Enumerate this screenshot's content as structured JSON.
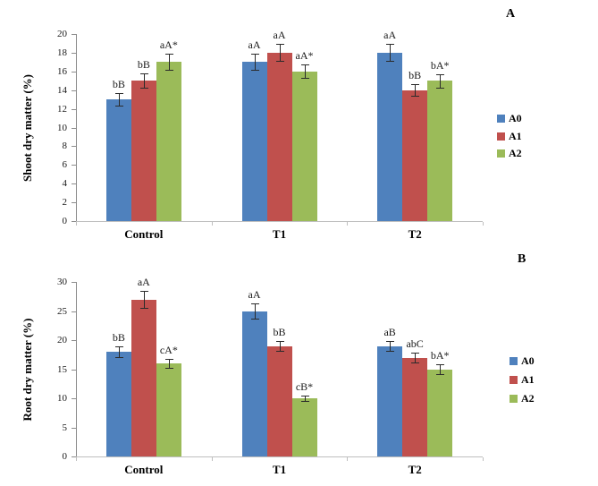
{
  "figure": {
    "background": "#ffffff",
    "error_bar_color": "#2b2b2b"
  },
  "chart_data": [
    {
      "type": "bar",
      "panel_label": "A",
      "title": "",
      "xlabel": "",
      "ylabel": "Shoot dry matter (%)",
      "categories": [
        "Control",
        "T1",
        "T2"
      ],
      "series": [
        {
          "name": "A0",
          "color": "#4F81BD",
          "values": [
            13,
            17,
            18
          ],
          "errors": [
            0.7,
            0.85,
            0.9
          ],
          "labels": [
            "bB",
            "aA",
            "aA"
          ]
        },
        {
          "name": "A1",
          "color": "#C0504D",
          "values": [
            15,
            18,
            14
          ],
          "errors": [
            0.75,
            0.9,
            0.6
          ],
          "labels": [
            "bB",
            "aA",
            "bB"
          ]
        },
        {
          "name": "A2",
          "color": "#9BBB59",
          "values": [
            17,
            16,
            15
          ],
          "errors": [
            0.85,
            0.7,
            0.7
          ],
          "labels": [
            "aA*",
            "aA*",
            "bA*"
          ]
        }
      ],
      "ylim": [
        0,
        20
      ],
      "ytick_step": 2,
      "ytick_labels": [
        "0",
        "2",
        "4",
        "6",
        "8",
        "10",
        "12",
        "14",
        "16",
        "18",
        "20"
      ],
      "legend": [
        "A0",
        "A1",
        "A2"
      ],
      "legend_position": "right",
      "grid": false
    },
    {
      "type": "bar",
      "panel_label": "B",
      "title": "",
      "xlabel": "",
      "ylabel": "Root dry matter (%)",
      "categories": [
        "Control",
        "T1",
        "T2"
      ],
      "series": [
        {
          "name": "A0",
          "color": "#4F81BD",
          "values": [
            18,
            25,
            19
          ],
          "errors": [
            0.9,
            1.3,
            0.8
          ],
          "labels": [
            "bB",
            "aA",
            "aB"
          ]
        },
        {
          "name": "A1",
          "color": "#C0504D",
          "values": [
            27,
            19,
            17
          ],
          "errors": [
            1.4,
            0.9,
            0.9
          ],
          "labels": [
            "aA",
            "bB",
            "abC"
          ]
        },
        {
          "name": "A2",
          "color": "#9BBB59",
          "values": [
            16,
            10,
            15
          ],
          "errors": [
            0.8,
            0.5,
            0.8
          ],
          "labels": [
            "cA*",
            "cB*",
            "bA*"
          ]
        }
      ],
      "ylim": [
        0,
        30
      ],
      "ytick_step": 5,
      "ytick_labels": [
        "0",
        "5",
        "10",
        "15",
        "20",
        "25",
        "30"
      ],
      "legend": [
        "A0",
        "A1",
        "A2"
      ],
      "legend_position": "right",
      "grid": false
    }
  ]
}
